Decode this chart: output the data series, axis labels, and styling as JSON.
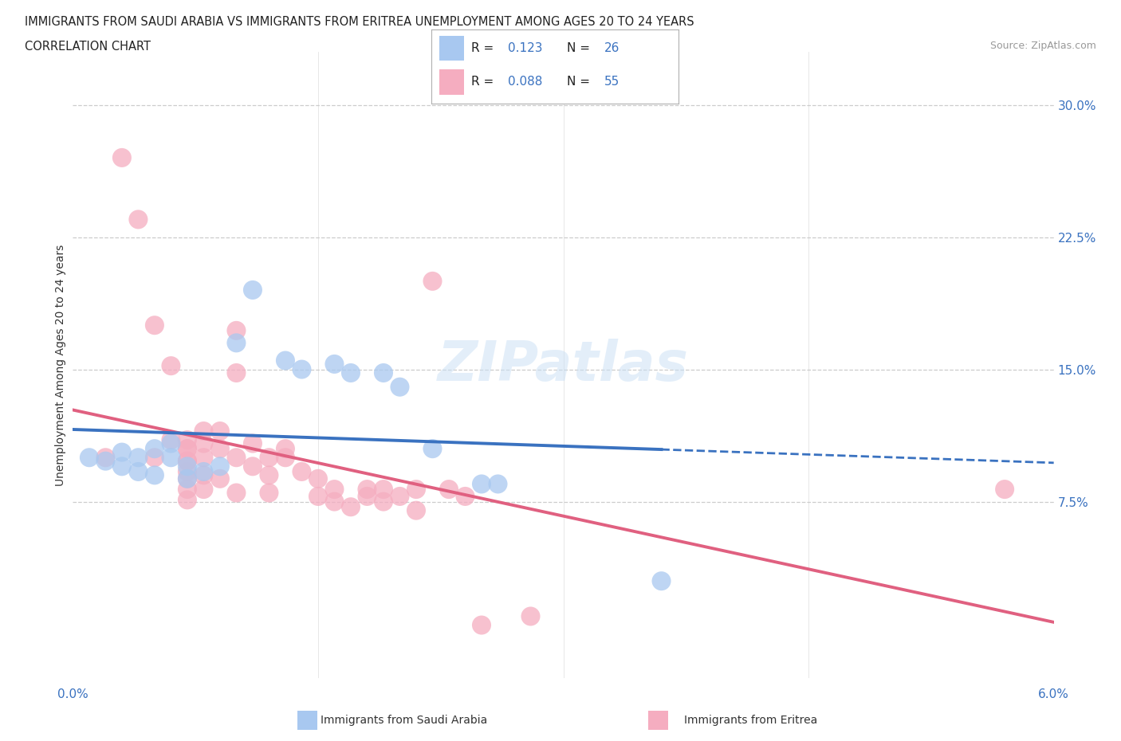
{
  "title_line1": "IMMIGRANTS FROM SAUDI ARABIA VS IMMIGRANTS FROM ERITREA UNEMPLOYMENT AMONG AGES 20 TO 24 YEARS",
  "title_line2": "CORRELATION CHART",
  "source_text": "Source: ZipAtlas.com",
  "ylabel": "Unemployment Among Ages 20 to 24 years",
  "watermark": "ZIPatlas",
  "saudi_R": 0.123,
  "saudi_N": 26,
  "eritrea_R": 0.088,
  "eritrea_N": 55,
  "saudi_color": "#a8c8f0",
  "eritrea_color": "#f5adc0",
  "saudi_line_color": "#3a72c0",
  "eritrea_line_color": "#e06080",
  "ytick_labels": [
    "7.5%",
    "15.0%",
    "22.5%",
    "30.0%"
  ],
  "ytick_values": [
    0.075,
    0.15,
    0.225,
    0.3
  ],
  "xmin": 0.0,
  "xmax": 0.06,
  "ymin": -0.025,
  "ymax": 0.33,
  "saudi_points": [
    [
      0.001,
      0.1
    ],
    [
      0.002,
      0.098
    ],
    [
      0.003,
      0.095
    ],
    [
      0.003,
      0.103
    ],
    [
      0.004,
      0.092
    ],
    [
      0.004,
      0.1
    ],
    [
      0.005,
      0.09
    ],
    [
      0.005,
      0.105
    ],
    [
      0.006,
      0.1
    ],
    [
      0.006,
      0.108
    ],
    [
      0.007,
      0.088
    ],
    [
      0.007,
      0.095
    ],
    [
      0.008,
      0.092
    ],
    [
      0.009,
      0.095
    ],
    [
      0.01,
      0.165
    ],
    [
      0.011,
      0.195
    ],
    [
      0.013,
      0.155
    ],
    [
      0.014,
      0.15
    ],
    [
      0.016,
      0.153
    ],
    [
      0.017,
      0.148
    ],
    [
      0.019,
      0.148
    ],
    [
      0.02,
      0.14
    ],
    [
      0.022,
      0.105
    ],
    [
      0.025,
      0.085
    ],
    [
      0.026,
      0.085
    ],
    [
      0.036,
      0.03
    ]
  ],
  "eritrea_points": [
    [
      0.002,
      0.1
    ],
    [
      0.003,
      0.27
    ],
    [
      0.004,
      0.235
    ],
    [
      0.005,
      0.175
    ],
    [
      0.005,
      0.1
    ],
    [
      0.006,
      0.152
    ],
    [
      0.006,
      0.11
    ],
    [
      0.007,
      0.105
    ],
    [
      0.007,
      0.098
    ],
    [
      0.007,
      0.092
    ],
    [
      0.007,
      0.11
    ],
    [
      0.007,
      0.105
    ],
    [
      0.007,
      0.098
    ],
    [
      0.007,
      0.088
    ],
    [
      0.007,
      0.082
    ],
    [
      0.007,
      0.076
    ],
    [
      0.008,
      0.115
    ],
    [
      0.008,
      0.108
    ],
    [
      0.008,
      0.1
    ],
    [
      0.008,
      0.09
    ],
    [
      0.008,
      0.082
    ],
    [
      0.009,
      0.115
    ],
    [
      0.009,
      0.105
    ],
    [
      0.009,
      0.088
    ],
    [
      0.01,
      0.172
    ],
    [
      0.01,
      0.148
    ],
    [
      0.01,
      0.1
    ],
    [
      0.01,
      0.08
    ],
    [
      0.011,
      0.108
    ],
    [
      0.011,
      0.095
    ],
    [
      0.012,
      0.1
    ],
    [
      0.012,
      0.09
    ],
    [
      0.012,
      0.08
    ],
    [
      0.013,
      0.105
    ],
    [
      0.013,
      0.1
    ],
    [
      0.014,
      0.092
    ],
    [
      0.015,
      0.088
    ],
    [
      0.015,
      0.078
    ],
    [
      0.016,
      0.082
    ],
    [
      0.016,
      0.075
    ],
    [
      0.017,
      0.072
    ],
    [
      0.018,
      0.082
    ],
    [
      0.018,
      0.078
    ],
    [
      0.019,
      0.082
    ],
    [
      0.019,
      0.075
    ],
    [
      0.02,
      0.078
    ],
    [
      0.021,
      0.082
    ],
    [
      0.021,
      0.07
    ],
    [
      0.022,
      0.2
    ],
    [
      0.023,
      0.082
    ],
    [
      0.024,
      0.078
    ],
    [
      0.025,
      0.005
    ],
    [
      0.028,
      0.01
    ],
    [
      0.057,
      0.082
    ]
  ]
}
